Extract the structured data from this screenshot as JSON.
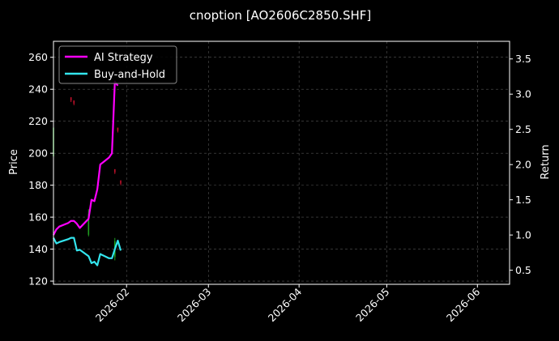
{
  "chart_data": {
    "type": "line",
    "title": "cnoption [AO2606C2850.SHF]",
    "ylabel_left": "Price",
    "ylabel_right": "Return",
    "xlabel": "",
    "x_range": [
      "2026-01-07",
      "2026-06-12"
    ],
    "y_left_range": [
      118,
      270
    ],
    "y_right_range": [
      0.3,
      3.75
    ],
    "x_ticks": [
      "2026-02-01",
      "2026-03-01",
      "2026-04-01",
      "2026-05-01",
      "2026-06-01"
    ],
    "x_tick_labels": [
      "2026-02",
      "2026-03",
      "2026-04",
      "2026-05",
      "2026-06"
    ],
    "y_left_ticks": [
      120,
      140,
      160,
      180,
      200,
      220,
      240,
      260
    ],
    "y_right_ticks": [
      0.5,
      1.0,
      1.5,
      2.0,
      2.5,
      3.0,
      3.5
    ],
    "grid": true,
    "legend_position": "top-left",
    "colors": {
      "background": "#000000",
      "axis": "#ffffff",
      "grid": "#555555",
      "ai_strategy": "#ff00ff",
      "buy_and_hold": "#33e5ee",
      "candle_up": "#1f9e1f",
      "candle_down": "#c0102a"
    },
    "series": [
      {
        "name": "AI Strategy",
        "axis": "right",
        "color": "#ff00ff",
        "points": [
          [
            "2026-01-07",
            1.0
          ],
          [
            "2026-01-08",
            1.08
          ],
          [
            "2026-01-09",
            1.12
          ],
          [
            "2026-01-12",
            1.17
          ],
          [
            "2026-01-13",
            1.2
          ],
          [
            "2026-01-14",
            1.2
          ],
          [
            "2026-01-15",
            1.16
          ],
          [
            "2026-01-16",
            1.1
          ],
          [
            "2026-01-19",
            1.23
          ],
          [
            "2026-01-20",
            1.5
          ],
          [
            "2026-01-21",
            1.48
          ],
          [
            "2026-01-22",
            1.65
          ],
          [
            "2026-01-23",
            2.0
          ],
          [
            "2026-01-26",
            2.1
          ],
          [
            "2026-01-27",
            2.16
          ],
          [
            "2026-01-28",
            3.18
          ],
          [
            "2026-01-29",
            3.12
          ]
        ]
      },
      {
        "name": "Buy-and-Hold",
        "axis": "right",
        "color": "#33e5ee",
        "points": [
          [
            "2026-01-07",
            0.96
          ],
          [
            "2026-01-08",
            0.88
          ],
          [
            "2026-01-09",
            0.9
          ],
          [
            "2026-01-12",
            0.94
          ],
          [
            "2026-01-13",
            0.96
          ],
          [
            "2026-01-14",
            0.96
          ],
          [
            "2026-01-15",
            0.78
          ],
          [
            "2026-01-16",
            0.79
          ],
          [
            "2026-01-19",
            0.7
          ],
          [
            "2026-01-20",
            0.6
          ],
          [
            "2026-01-21",
            0.62
          ],
          [
            "2026-01-22",
            0.57
          ],
          [
            "2026-01-23",
            0.73
          ],
          [
            "2026-01-26",
            0.67
          ],
          [
            "2026-01-27",
            0.67
          ],
          [
            "2026-01-28",
            0.8
          ],
          [
            "2026-01-29",
            0.92
          ],
          [
            "2026-01-30",
            0.78
          ]
        ]
      }
    ],
    "candles": [
      {
        "date": "2026-01-07",
        "open": 198,
        "close": 216,
        "high": 222,
        "low": 195
      },
      {
        "date": "2026-01-13",
        "open": 235,
        "close": 233,
        "high": 235,
        "low": 232
      },
      {
        "date": "2026-01-14",
        "open": 233,
        "close": 231,
        "high": 233,
        "low": 230
      },
      {
        "date": "2026-01-19",
        "open": 149,
        "close": 162,
        "high": 165,
        "low": 148
      },
      {
        "date": "2026-01-28",
        "open": 135,
        "close": 145,
        "high": 147,
        "low": 133
      },
      {
        "date": "2026-01-28",
        "open": 190,
        "close": 188,
        "high": 190,
        "low": 187
      },
      {
        "date": "2026-01-29",
        "open": 216,
        "close": 214,
        "high": 216,
        "low": 213
      },
      {
        "date": "2026-01-30",
        "open": 183,
        "close": 181,
        "high": 183,
        "low": 180
      }
    ]
  }
}
